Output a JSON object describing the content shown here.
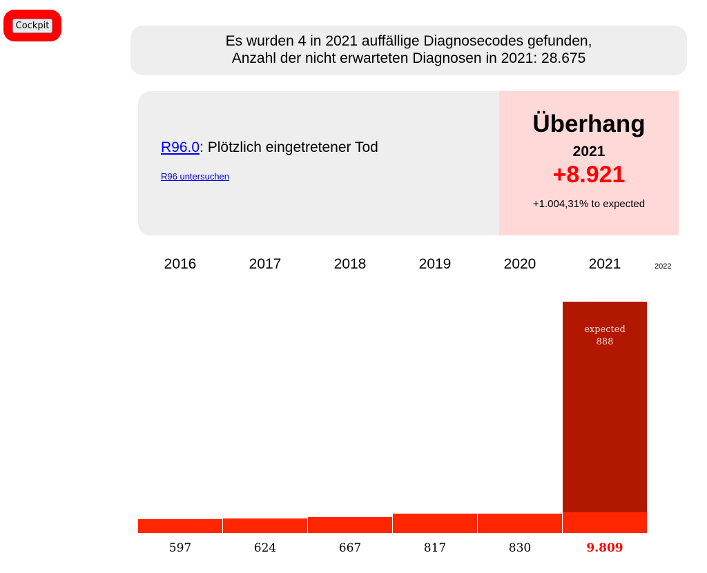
{
  "nav": {
    "cockpit_label": "Cockpit"
  },
  "summary": {
    "line1": "Es wurden 4 in 2021 auffällige Diagnosecodes gefunden,",
    "line2": "Anzahl der nicht erwarteten Diagnosen in 2021: 28.675"
  },
  "card": {
    "code": "R96.0",
    "description": ": Plötzlich eingetretener Tod",
    "investigate_link": "R96 untersuchen",
    "title": "Überhang",
    "year": "2021",
    "value": "+8.921",
    "percent": "+1.004,31% to expected"
  },
  "colors": {
    "bar": "#ff2600",
    "expected": "#b21800",
    "highlight": "#ff0000",
    "overhang_bg": "#ffd8d8"
  },
  "chart_data": {
    "type": "bar",
    "categories": [
      "2016",
      "2017",
      "2018",
      "2019",
      "2020",
      "2021"
    ],
    "values": [
      597,
      624,
      667,
      817,
      830,
      9809
    ],
    "value_labels": [
      "597",
      "624",
      "667",
      "817",
      "830",
      "9.809"
    ],
    "expected": {
      "year": "2021",
      "label": "expected",
      "value": 888,
      "value_label": "888"
    },
    "extra_category": "2022"
  }
}
